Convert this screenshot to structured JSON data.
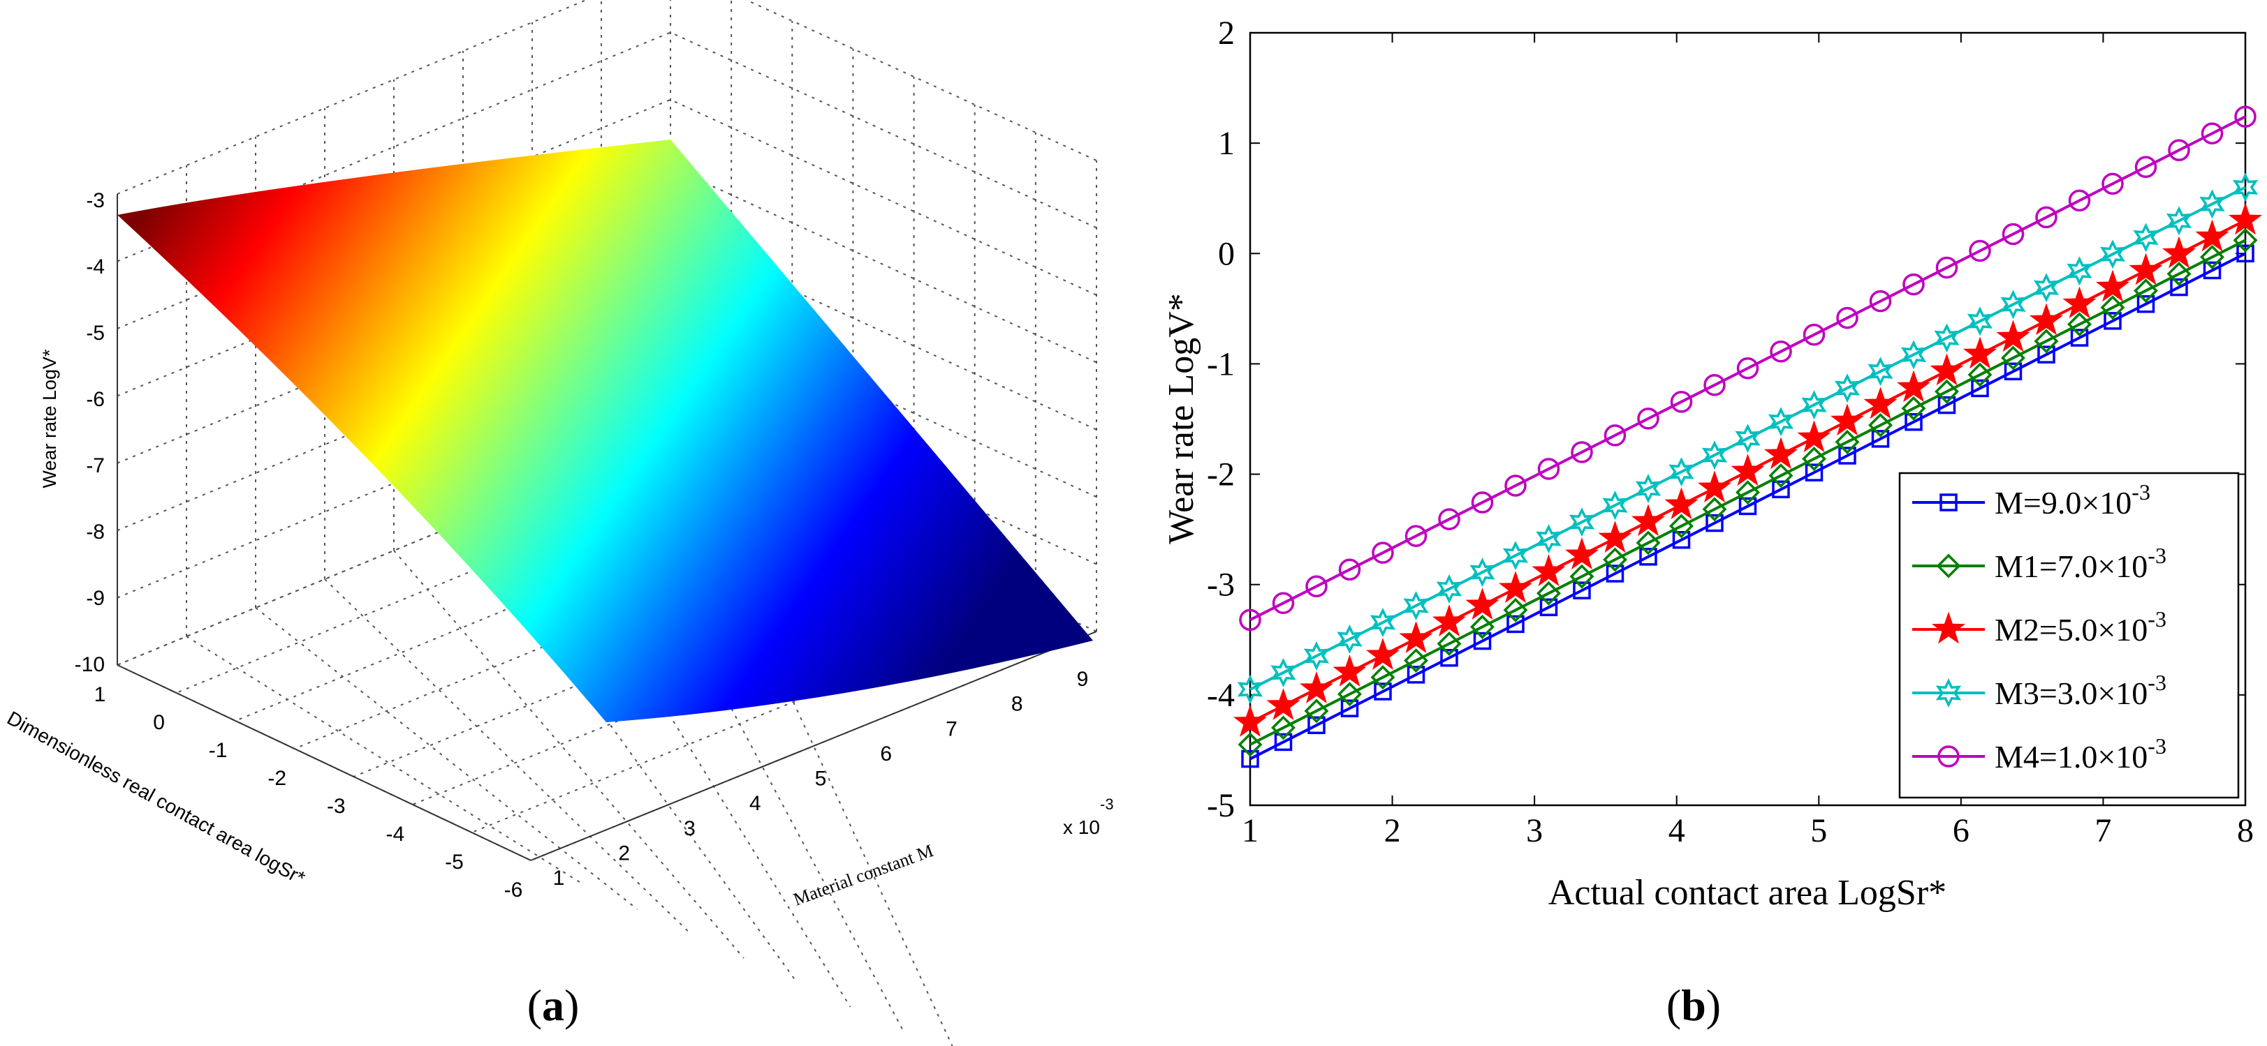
{
  "chart_data": [
    {
      "panel": "(a)",
      "type": "surface3d",
      "zlabel": "Wear rate LogV*",
      "xlabel": "Dimensionless real contact area logSr*",
      "ylabel": "Material constant M",
      "y_scale_label": "x 10",
      "y_scale_exp": "-3",
      "z_ticks": [
        "-3",
        "-4",
        "-5",
        "-6",
        "-7",
        "-8",
        "-9",
        "-10"
      ],
      "x_ticks": [
        "1",
        "0",
        "-1",
        "-2",
        "-3",
        "-4",
        "-5",
        "-6"
      ],
      "y_ticks": [
        "1",
        "2",
        "3",
        "4",
        "5",
        "6",
        "7",
        "8",
        "9"
      ],
      "zlim": [
        -10,
        -3
      ],
      "xlim": [
        -6,
        1
      ],
      "ylim": [
        1,
        9
      ],
      "colormap": [
        "#7f0000",
        "#ff0000",
        "#ffff00",
        "#00ffff",
        "#0000ff",
        "#00007f"
      ]
    },
    {
      "panel": "(b)",
      "type": "line",
      "xlabel": "Actual contact area LogSr*",
      "ylabel": "Wear rate LogV*",
      "xlim": [
        1,
        8
      ],
      "ylim": [
        -5,
        2
      ],
      "x_ticks": [
        "1",
        "2",
        "3",
        "4",
        "5",
        "6",
        "7",
        "8"
      ],
      "y_ticks": [
        "2",
        "1",
        "0",
        "-1",
        "-2",
        "-3",
        "-4",
        "-5"
      ],
      "legend_position": "bottom-right",
      "series": [
        {
          "name": "M=9.0×10",
          "exp": "-3",
          "color": "#0000ff",
          "marker": "square",
          "start": -4.58,
          "end": 0.0
        },
        {
          "name": "M1=7.0×10",
          "exp": "-3",
          "color": "#008000",
          "marker": "diamond",
          "start": -4.45,
          "end": 0.12
        },
        {
          "name": "M2=5.0×10",
          "exp": "-3",
          "color": "#ff0000",
          "marker": "star",
          "start": -4.25,
          "end": 0.3
        },
        {
          "name": "M3=3.0×10",
          "exp": "-3",
          "color": "#00bfbf",
          "marker": "hexagram",
          "start": -3.95,
          "end": 0.6
        },
        {
          "name": "M4=1.0×10",
          "exp": "-3",
          "color": "#bf00bf",
          "marker": "circle",
          "start": -3.32,
          "end": 1.24
        }
      ],
      "points_per_series": 31
    }
  ],
  "captions": {
    "a": "(a)",
    "b": "(b)"
  }
}
